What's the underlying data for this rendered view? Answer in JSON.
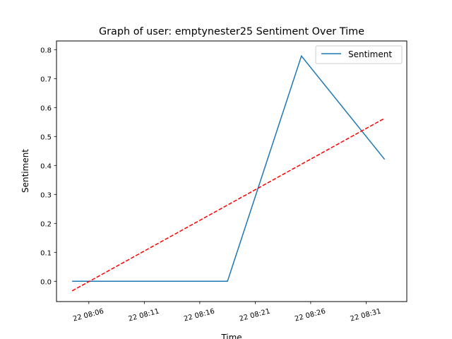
{
  "chart_data": {
    "type": "line",
    "title": "Graph of user: emptynester25 Sentiment Over Time",
    "xlabel": "Time",
    "ylabel": "Sentiment",
    "xlim": [
      "22 08:03:05",
      "22 08:34:40"
    ],
    "ylim": [
      -0.07,
      0.83
    ],
    "x_ticks": [
      "22 08:06",
      "22 08:11",
      "22 08:16",
      "22 08:21",
      "22 08:26",
      "22 08:31"
    ],
    "y_ticks": [
      "0.0",
      "0.1",
      "0.2",
      "0.3",
      "0.4",
      "0.5",
      "0.6",
      "0.7",
      "0.8"
    ],
    "grid": false,
    "legend_position": "upper-right",
    "series": [
      {
        "name": "Sentiment",
        "style": "solid",
        "color": "#1f77b4",
        "x": [
          "22 08:04:30",
          "22 08:18:30",
          "22 08:25:10",
          "22 08:32:40"
        ],
        "y": [
          0.0,
          0.0,
          0.778,
          0.421
        ]
      },
      {
        "style": "dashed",
        "color": "#ff0000",
        "x": [
          "22 08:04:30",
          "22 08:32:40"
        ],
        "y": [
          -0.033,
          0.563
        ]
      }
    ]
  }
}
